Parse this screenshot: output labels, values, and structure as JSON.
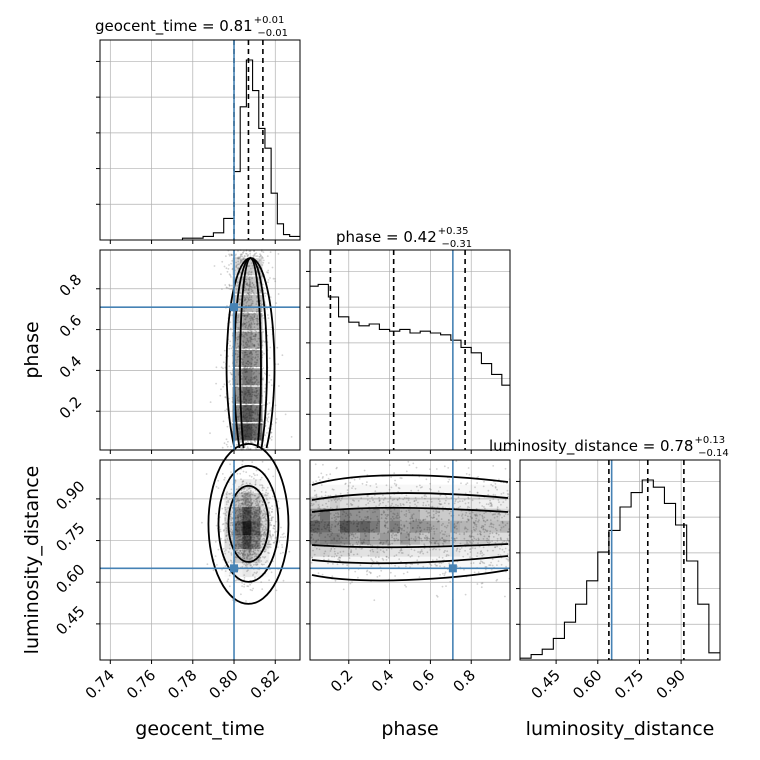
{
  "chart_data": {
    "type": "corner",
    "parameters": [
      "geocent_time",
      "phase",
      "luminosity_distance"
    ],
    "axis_labels": {
      "x": [
        "geocent_time",
        "phase",
        "luminosity_distance"
      ],
      "y": [
        "phase",
        "luminosity_distance"
      ]
    },
    "ranges": {
      "geocent_time": [
        0.735,
        0.832
      ],
      "phase": [
        0.01,
        0.99
      ],
      "luminosity_distance": [
        0.32,
        1.04
      ]
    },
    "ticks": {
      "geocent_time": [
        "0.74",
        "0.76",
        "0.78",
        "0.80",
        "0.82"
      ],
      "phase_x": [
        "0.2",
        "0.4",
        "0.6",
        "0.8"
      ],
      "phase_y": [
        "0.2",
        "0.4",
        "0.6",
        "0.8"
      ],
      "luminosity_distance": [
        "0.45",
        "0.60",
        "0.75",
        "0.90"
      ]
    },
    "titles": [
      {
        "param": "geocent_time",
        "prefix": "geocent_time = 0.81",
        "plus": "+0.01",
        "minus": "−0.01"
      },
      {
        "param": "phase",
        "prefix": "phase = 0.42",
        "plus": "+0.35",
        "minus": "−0.31"
      },
      {
        "param": "luminosity_distance",
        "prefix": "luminosity_distance = 0.78",
        "plus": "+0.13",
        "minus": "−0.14"
      }
    ],
    "truths": {
      "geocent_time": 0.8,
      "phase": 0.71,
      "luminosity_distance": 0.65
    },
    "quantiles": {
      "geocent_time": [
        0.8,
        0.807,
        0.814
      ],
      "phase": [
        0.11,
        0.42,
        0.77
      ],
      "luminosity_distance": [
        0.64,
        0.78,
        0.91
      ]
    },
    "histograms": {
      "geocent_time": {
        "edges": [
          0.735,
          0.74,
          0.745,
          0.75,
          0.755,
          0.76,
          0.765,
          0.77,
          0.775,
          0.78,
          0.785,
          0.79,
          0.795,
          0.8,
          0.803,
          0.806,
          0.809,
          0.812,
          0.815,
          0.818,
          0.821,
          0.824,
          0.827,
          0.832
        ],
        "counts": [
          0,
          0,
          0,
          0,
          0,
          0,
          0,
          0,
          0.01,
          0.01,
          0.02,
          0.04,
          0.12,
          0.38,
          0.74,
          1.0,
          0.83,
          0.62,
          0.51,
          0.26,
          0.09,
          0.03,
          0.02
        ]
      },
      "phase": {
        "edges": [
          0.01,
          0.05,
          0.1,
          0.15,
          0.2,
          0.25,
          0.3,
          0.35,
          0.4,
          0.45,
          0.5,
          0.55,
          0.6,
          0.65,
          0.7,
          0.75,
          0.8,
          0.85,
          0.9,
          0.95,
          0.99
        ],
        "counts": [
          0.91,
          0.92,
          0.85,
          0.74,
          0.71,
          0.69,
          0.7,
          0.67,
          0.66,
          0.67,
          0.65,
          0.66,
          0.65,
          0.64,
          0.61,
          0.57,
          0.54,
          0.48,
          0.42,
          0.36
        ]
      },
      "luminosity_distance": {
        "edges": [
          0.32,
          0.36,
          0.4,
          0.44,
          0.48,
          0.52,
          0.56,
          0.6,
          0.64,
          0.68,
          0.72,
          0.76,
          0.8,
          0.84,
          0.88,
          0.92,
          0.96,
          1.0,
          1.04
        ],
        "counts": [
          0.01,
          0.03,
          0.06,
          0.12,
          0.21,
          0.31,
          0.44,
          0.6,
          0.72,
          0.85,
          0.93,
          1.0,
          0.96,
          0.87,
          0.75,
          0.55,
          0.31,
          0.04
        ]
      }
    },
    "series": [
      {
        "panel": "phase_vs_geocent_time",
        "center_x": 0.807,
        "spread_x": 0.0055,
        "y_range": [
          0.01,
          0.99
        ]
      },
      {
        "panel": "luminosity_distance_vs_geocent_time",
        "center_x": 0.807,
        "spread_x": 0.006,
        "center_y": 0.8,
        "spread_y": 0.09
      },
      {
        "panel": "luminosity_distance_vs_phase",
        "center_y": 0.8,
        "spread_y": 0.09,
        "x_range": [
          0.01,
          0.99
        ]
      }
    ],
    "grid": true,
    "colors": {
      "truth": "#4682b4",
      "hist": "#000000",
      "quantile": "#000000",
      "points": "#7f7f7f"
    }
  }
}
